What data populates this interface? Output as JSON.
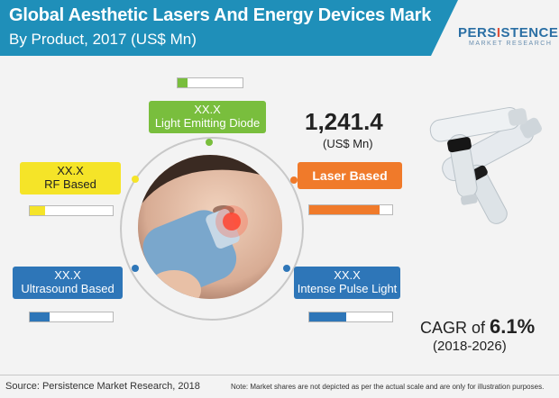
{
  "header": {
    "title": "Global Aesthetic Lasers And Energy Devices Market",
    "subtitle": "By Product, 2017 (US$ Mn)"
  },
  "logo": {
    "word_part1": "PERS",
    "word_i": "I",
    "word_part2": "STENCE",
    "sub": "MARKET RESEARCH"
  },
  "total": {
    "value": "1,241.4",
    "unit": "(US$ Mn)"
  },
  "segments": [
    {
      "key": "light_emitting_diode",
      "value": "XX.X",
      "label": "Light Emitting Diode",
      "color": "#79be3d",
      "fill_fraction": 0.15
    },
    {
      "key": "rf_based",
      "value": "XX.X",
      "label": "RF Based",
      "color": "#f5e428",
      "fill_fraction": 0.18
    },
    {
      "key": "laser_based",
      "value": "",
      "label": "Laser Based",
      "color": "#f07a2a",
      "fill_fraction": 0.85
    },
    {
      "key": "ultrasound_based",
      "value": "XX.X",
      "label": "Ultrasound Based",
      "color": "#2e76b8",
      "fill_fraction": 0.24
    },
    {
      "key": "intense_pulse_light",
      "value": "XX.X",
      "label": "Intense Pulse Light",
      "color": "#2e76b8",
      "fill_fraction": 0.45
    }
  ],
  "cagr": {
    "prefix": "CAGR of",
    "value": "6.1%",
    "years": "(2018-2026)"
  },
  "footer": {
    "source": "Source: Persistence Market Research, 2018",
    "note": "Note: Market shares are not depicted as per the actual scale and are only for illustration purposes."
  }
}
